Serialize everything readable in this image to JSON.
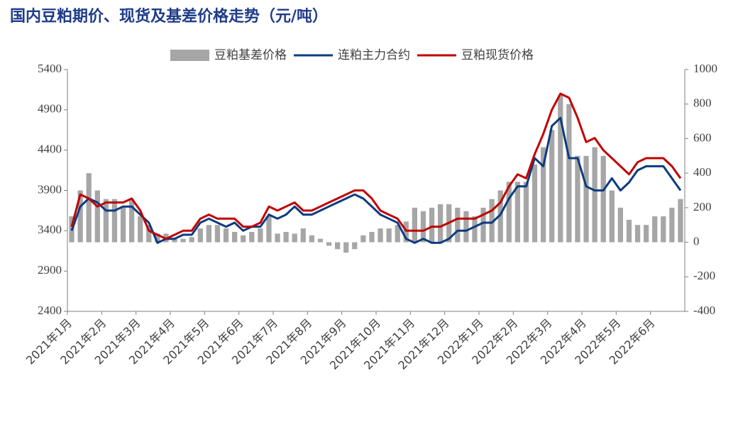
{
  "chart_data": {
    "type": "combo",
    "title": "国内豆粕期价、现货及基差价格走势（元/吨）",
    "categories": [
      "2021年1月",
      null,
      null,
      null,
      "2021年2月",
      null,
      null,
      null,
      "2021年3月",
      null,
      null,
      null,
      "2021年4月",
      null,
      null,
      null,
      "2021年5月",
      null,
      null,
      null,
      "2021年6月",
      null,
      null,
      null,
      "2021年7月",
      null,
      null,
      null,
      "2021年8月",
      null,
      null,
      null,
      "2021年9月",
      null,
      null,
      null,
      "2021年10月",
      null,
      null,
      null,
      "2021年11月",
      null,
      null,
      null,
      "2021年12月",
      null,
      null,
      null,
      "2022年1月",
      null,
      null,
      null,
      "2022年2月",
      null,
      null,
      null,
      "2022年3月",
      null,
      null,
      null,
      "2022年4月",
      null,
      null,
      null,
      "2022年5月",
      null,
      null,
      null,
      "2022年6月",
      null,
      null,
      null
    ],
    "series": [
      {
        "name": "豆粕基差价格",
        "type": "bar",
        "axis": "y2",
        "color": "#a6a6a6",
        "values": [
          150,
          300,
          400,
          300,
          250,
          250,
          200,
          250,
          150,
          100,
          50,
          50,
          20,
          20,
          30,
          80,
          100,
          100,
          80,
          60,
          40,
          60,
          80,
          150,
          50,
          60,
          50,
          80,
          40,
          20,
          -20,
          -40,
          -60,
          -40,
          40,
          60,
          80,
          80,
          100,
          120,
          200,
          180,
          200,
          220,
          220,
          200,
          180,
          150,
          200,
          250,
          300,
          350,
          350,
          350,
          450,
          550,
          650,
          850,
          800,
          500,
          500,
          550,
          500,
          300,
          200,
          130,
          100,
          100,
          150,
          150,
          200,
          250
        ]
      },
      {
        "name": "连粕主力合约",
        "type": "line",
        "color": "#0d3b7f",
        "values": [
          3400,
          3700,
          3800,
          3750,
          3650,
          3650,
          3700,
          3700,
          3600,
          3500,
          3250,
          3300,
          3300,
          3350,
          3350,
          3500,
          3550,
          3500,
          3450,
          3500,
          3400,
          3450,
          3450,
          3600,
          3550,
          3600,
          3700,
          3600,
          3600,
          3650,
          3700,
          3750,
          3800,
          3850,
          3800,
          3700,
          3600,
          3550,
          3500,
          3300,
          3250,
          3300,
          3250,
          3250,
          3300,
          3400,
          3400,
          3450,
          3500,
          3500,
          3600,
          3800,
          3950,
          3950,
          4300,
          4200,
          4700,
          4800,
          4300,
          4300,
          3950,
          3900,
          3900,
          4050,
          3900,
          4000,
          4150,
          4200,
          4200,
          4200,
          4050,
          3900
        ]
      },
      {
        "name": "豆粕现货价格",
        "type": "line",
        "color": "#c00000",
        "values": [
          3450,
          3850,
          3800,
          3700,
          3750,
          3750,
          3750,
          3800,
          3650,
          3400,
          3350,
          3300,
          3350,
          3400,
          3400,
          3550,
          3600,
          3550,
          3550,
          3550,
          3450,
          3450,
          3500,
          3700,
          3650,
          3700,
          3750,
          3650,
          3650,
          3700,
          3750,
          3800,
          3850,
          3900,
          3900,
          3800,
          3650,
          3600,
          3550,
          3400,
          3400,
          3400,
          3450,
          3450,
          3500,
          3550,
          3550,
          3550,
          3600,
          3650,
          3750,
          3950,
          4100,
          4050,
          4350,
          4600,
          4900,
          5100,
          5050,
          4800,
          4500,
          4550,
          4400,
          4300,
          4200,
          4100,
          4250,
          4300,
          4300,
          4300,
          4200,
          4050
        ]
      }
    ],
    "ylim": [
      2400,
      5400
    ],
    "yticks": [
      2400,
      2900,
      3400,
      3900,
      4400,
      4900,
      5400
    ],
    "y2lim": [
      -400,
      1000
    ],
    "y2ticks": [
      -400,
      -200,
      0,
      200,
      400,
      600,
      800,
      1000
    ]
  }
}
